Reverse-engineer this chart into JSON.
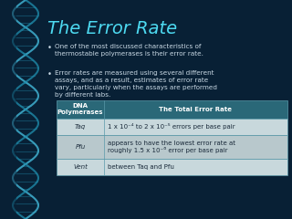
{
  "title": "The Error Rate",
  "title_color": "#4DD9F0",
  "title_fontsize": 14,
  "bg_color": "#082035",
  "bullet_color": "#c8d8e4",
  "bullet_fontsize": 5.2,
  "bullets": [
    "One of the most discussed characteristics of\nthermostable polymerases is their error rate.",
    "Error rates are measured using several different\nassays, and as a result, estimates of error rate\nvary, particularly when the assays are performed\nby different labs."
  ],
  "table_header_bg": "#2a6878",
  "table_row_bg1": "#c8d8dc",
  "table_row_bg2": "#b8c8cc",
  "table_border_color": "#5a9aaa",
  "table_header_text_color": "#ffffff",
  "table_header_col1": "DNA\nPolymerases",
  "table_header_col2": "The Total Error Rate",
  "table_rows": [
    [
      "Taq",
      "1 x 10⁻⁴ to 2 x 10⁻⁵ errors per base pair"
    ],
    [
      "Pfu",
      "appears to have the lowest error rate at\nroughly 1.5 x 10⁻⁶ error per base pair"
    ],
    [
      "Vent",
      "between Taq and Pfu"
    ]
  ],
  "table_text_color": "#1a2a3a",
  "table_fontsize": 5.0,
  "helix_color1": "#2090b0",
  "helix_color2": "#40b0d0",
  "helix_link_color": "#1a7090"
}
